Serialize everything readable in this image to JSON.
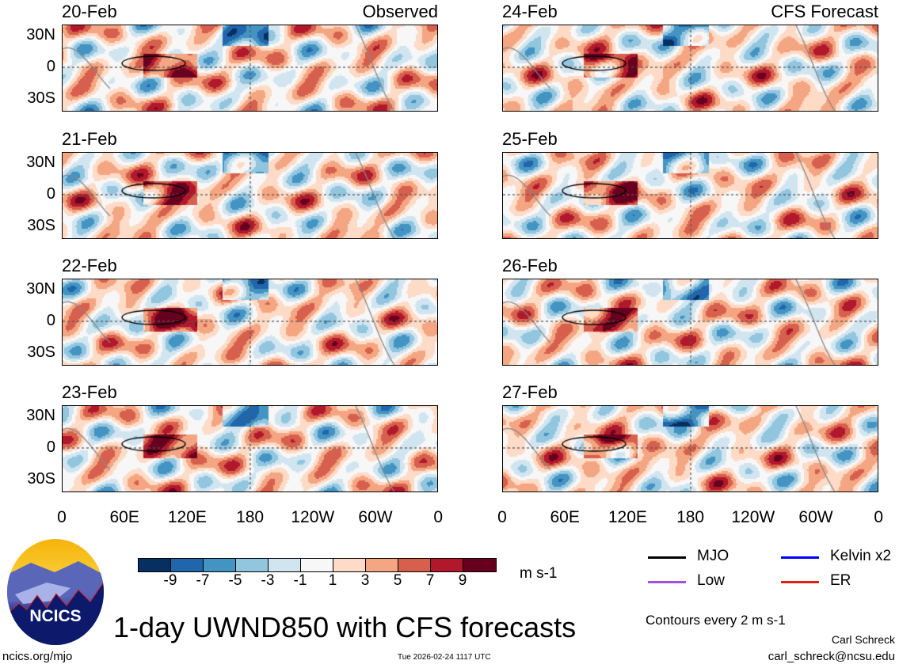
{
  "panels": [
    {
      "date": "20-Feb",
      "tag": "Observed"
    },
    {
      "date": "21-Feb",
      "tag": ""
    },
    {
      "date": "22-Feb",
      "tag": ""
    },
    {
      "date": "23-Feb",
      "tag": ""
    },
    {
      "date": "24-Feb",
      "tag": "CFS Forecast"
    },
    {
      "date": "25-Feb",
      "tag": ""
    },
    {
      "date": "26-Feb",
      "tag": ""
    },
    {
      "date": "27-Feb",
      "tag": ""
    }
  ],
  "y_ticks": [
    "30N",
    "0",
    "30S"
  ],
  "x_ticks": [
    "0",
    "60E",
    "120E",
    "180",
    "120W",
    "60W",
    "0"
  ],
  "colorbar": {
    "colors": [
      "#053061",
      "#2166ac",
      "#4393c3",
      "#92c5de",
      "#d1e5f0",
      "#f7f7f7",
      "#fddbc7",
      "#f4a582",
      "#d6604d",
      "#b2182b",
      "#67001f"
    ],
    "labels": [
      "-9",
      "-7",
      "-5",
      "-3",
      "-1",
      "1",
      "3",
      "5",
      "7",
      "9"
    ],
    "units": "m s-1"
  },
  "legend": [
    {
      "label": "MJO",
      "color": "#000000"
    },
    {
      "label": "Kelvin x2",
      "color": "#0000ff"
    },
    {
      "label": "Low",
      "color": "#a050e0"
    },
    {
      "label": "ER",
      "color": "#e02010"
    }
  ],
  "logo": {
    "text": "NCICS"
  },
  "title": "1-day UWND850 with CFS forecasts",
  "contours_note": "Contours every 2 m s-1",
  "author": "Carl Schreck",
  "email": "carl_schreck@ncsu.edu",
  "site": "ncics.org/mjo",
  "timestamp": "Tue 2026-02-24 1117 UTC"
}
